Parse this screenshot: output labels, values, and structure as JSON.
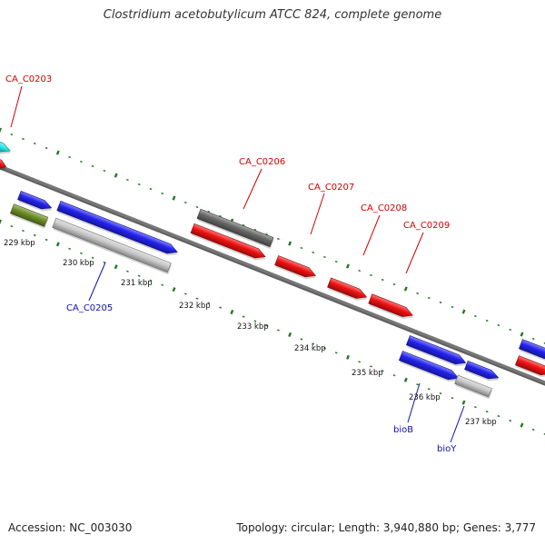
{
  "title": "Clostridium acetobutylicum ATCC 824, complete genome",
  "footer": {
    "accession": "Accession: NC_003030",
    "summary": "Topology: circular; Length: 3,940,880 bp; Genes: 3,777"
  },
  "colors": {
    "background": "#ffffff",
    "backbone": "#777777",
    "tick": "#1e7a1e",
    "forward_label": "#d00000",
    "reverse_label": "#1010b0",
    "gene_red": "#ee1111",
    "gene_blue": "#2222ee",
    "gene_gray": "#666666",
    "gene_lightgray": "#c8c8c8",
    "gene_cyan": "#22e8e8",
    "gene_olive": "#6b8e23"
  },
  "scale": {
    "ticks": [
      {
        "label": "229 kbp"
      },
      {
        "label": "230 kbp"
      },
      {
        "label": "231 kbp"
      },
      {
        "label": "232 kbp"
      },
      {
        "label": "233 kbp"
      },
      {
        "label": "234 kbp"
      },
      {
        "label": "235 kbp"
      },
      {
        "label": "236 kbp"
      },
      {
        "label": "237 kbp"
      }
    ]
  },
  "gene_labels": [
    {
      "text": "CA_C0203",
      "strand": "forward"
    },
    {
      "text": "CA_C0206",
      "strand": "forward"
    },
    {
      "text": "CA_C0207",
      "strand": "forward"
    },
    {
      "text": "CA_C0208",
      "strand": "forward"
    },
    {
      "text": "CA_C0209",
      "strand": "forward"
    },
    {
      "text": "CA_C0205",
      "strand": "reverse"
    },
    {
      "text": "bioB",
      "strand": "reverse"
    },
    {
      "text": "bioY",
      "strand": "reverse"
    }
  ]
}
